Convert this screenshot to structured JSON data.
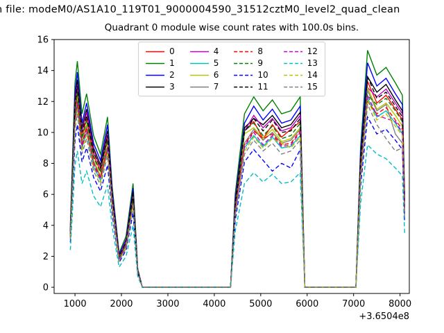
{
  "figure": {
    "title_line1": "n file: modeM0/AS1A10_119T01_9000004590_31512cztM0_level2_quad_clean",
    "title_line2": "Quadrant 0 module wise count rates with 100.0s bins.",
    "background": "#ffffff"
  },
  "chart_data": {
    "type": "line",
    "title": "Quadrant 0 module wise count rates with 100.0s bins.",
    "xlabel": "",
    "ylabel": "",
    "x_offset": "+3.6504e8",
    "xlim": [
      550,
      8200
    ],
    "ylim": [
      -0.4,
      16
    ],
    "x_ticks": [
      1000,
      2000,
      3000,
      4000,
      5000,
      6000,
      7000,
      8000
    ],
    "y_ticks": [
      0,
      2,
      4,
      6,
      8,
      10,
      12,
      14,
      16
    ],
    "grid": false,
    "legend": {
      "position": "upper center",
      "columns": 4
    },
    "x": [
      900,
      1000,
      1050,
      1150,
      1250,
      1400,
      1550,
      1700,
      1800,
      1950,
      2100,
      2250,
      2350,
      2450,
      4350,
      4450,
      4650,
      4850,
      5050,
      5250,
      5450,
      5650,
      5850,
      5950,
      7050,
      7150,
      7300,
      7500,
      7700,
      7900,
      8050,
      8100
    ],
    "series": [
      {
        "name": "0",
        "color": "#ff0000",
        "dash": false,
        "values": [
          3.5,
          11.5,
          12.7,
          9.7,
          10.9,
          8.5,
          7.5,
          9.6,
          5.7,
          1.9,
          2.9,
          5.8,
          1.0,
          0,
          0,
          5.2,
          10.1,
          10.7,
          9.6,
          10.5,
          9.7,
          10.2,
          10.7,
          0,
          0,
          7.8,
          13.3,
          11.9,
          12.4,
          11.5,
          10.8,
          5.1
        ]
      },
      {
        "name": "1",
        "color": "#008000",
        "dash": false,
        "values": [
          4.0,
          13.2,
          14.6,
          11.2,
          12.5,
          9.8,
          8.6,
          11.0,
          6.5,
          2.2,
          3.3,
          6.7,
          1.2,
          0,
          0,
          6.0,
          11.2,
          12.3,
          11.4,
          12.1,
          11.2,
          11.4,
          12.3,
          0,
          0,
          9.0,
          15.3,
          13.7,
          14.2,
          13.2,
          12.4,
          5.9
        ]
      },
      {
        "name": "2",
        "color": "#0000ff",
        "dash": false,
        "values": [
          3.8,
          12.5,
          13.9,
          10.6,
          11.9,
          9.3,
          8.2,
          10.5,
          6.2,
          2.1,
          3.1,
          6.4,
          1.1,
          0,
          0,
          5.7,
          10.6,
          11.7,
          10.8,
          11.5,
          10.6,
          10.8,
          11.7,
          0,
          0,
          8.6,
          14.5,
          13.0,
          13.5,
          12.5,
          11.8,
          5.6
        ]
      },
      {
        "name": "3",
        "color": "#000000",
        "dash": false,
        "values": [
          3.7,
          12.1,
          13.4,
          10.3,
          11.5,
          9.0,
          7.9,
          10.1,
          6.0,
          2.0,
          3.0,
          6.2,
          1.1,
          0,
          0,
          5.5,
          10.3,
          10.9,
          10.5,
          11.1,
          10.3,
          10.5,
          11.3,
          0,
          0,
          8.3,
          13.6,
          12.6,
          13.1,
          12.1,
          11.4,
          5.4
        ]
      },
      {
        "name": "4",
        "color": "#bf00bf",
        "dash": false,
        "values": [
          3.6,
          11.9,
          13.1,
          10.1,
          11.3,
          8.8,
          7.7,
          9.9,
          5.9,
          2.0,
          3.0,
          6.0,
          1.1,
          0,
          0,
          5.4,
          10.1,
          11.1,
          10.3,
          10.9,
          10.1,
          10.3,
          11.1,
          0,
          0,
          8.1,
          12.9,
          12.3,
          12.8,
          11.9,
          11.2,
          5.3
        ]
      },
      {
        "name": "5",
        "color": "#00bfbf",
        "dash": false,
        "values": [
          3.2,
          10.6,
          11.7,
          9.0,
          10.0,
          7.8,
          6.9,
          8.8,
          5.2,
          1.8,
          2.6,
          5.4,
          1.0,
          0,
          0,
          4.8,
          9.0,
          9.8,
          9.1,
          9.7,
          9.0,
          9.1,
          9.8,
          0,
          0,
          7.2,
          12.2,
          11.0,
          11.4,
          10.6,
          9.9,
          4.7
        ]
      },
      {
        "name": "6",
        "color": "#bfbf00",
        "dash": false,
        "values": [
          3.4,
          11.1,
          12.3,
          9.4,
          10.5,
          8.2,
          7.2,
          9.2,
          5.5,
          1.8,
          2.8,
          5.6,
          1.0,
          0,
          0,
          5.0,
          9.9,
          10.3,
          9.6,
          10.2,
          9.4,
          9.6,
          10.3,
          0,
          0,
          7.6,
          12.9,
          11.5,
          11.9,
          11.1,
          10.4,
          5.0
        ]
      },
      {
        "name": "7",
        "color": "#7f7f7f",
        "dash": false,
        "values": [
          3.3,
          11.0,
          12.1,
          9.3,
          10.4,
          8.1,
          7.1,
          9.1,
          5.4,
          1.8,
          2.7,
          5.6,
          1.0,
          0,
          0,
          5.0,
          9.3,
          10.2,
          9.5,
          10.0,
          9.3,
          9.5,
          10.2,
          0,
          0,
          7.5,
          12.7,
          11.4,
          11.8,
          9.9,
          9.3,
          4.9
        ]
      },
      {
        "name": "8",
        "color": "#ff0000",
        "dash": true,
        "values": [
          3.3,
          10.8,
          12.0,
          9.2,
          10.3,
          8.0,
          7.1,
          9.0,
          5.3,
          1.8,
          2.7,
          5.5,
          1.0,
          0,
          0,
          4.9,
          9.2,
          10.1,
          9.6,
          9.9,
          9.2,
          9.3,
          10.1,
          0,
          0,
          7.4,
          12.0,
          11.2,
          11.6,
          10.8,
          10.2,
          4.8
        ]
      },
      {
        "name": "9",
        "color": "#008000",
        "dash": true,
        "values": [
          3.4,
          11.4,
          12.6,
          9.6,
          10.8,
          8.4,
          7.4,
          9.5,
          5.6,
          1.9,
          2.8,
          5.8,
          1.0,
          0,
          0,
          5.2,
          10.1,
          10.6,
          9.8,
          10.4,
          9.6,
          9.8,
          10.6,
          0,
          0,
          7.7,
          12.4,
          11.8,
          12.2,
          11.4,
          10.7,
          5.1
        ]
      },
      {
        "name": "10",
        "color": "#0000ff",
        "dash": true,
        "values": [
          2.9,
          9.5,
          10.5,
          8.1,
          9.0,
          7.1,
          6.2,
          7.9,
          4.7,
          1.6,
          2.4,
          4.8,
          0.9,
          0,
          0,
          4.3,
          8.1,
          8.9,
          8.2,
          7.5,
          8.0,
          7.7,
          8.9,
          0,
          0,
          6.5,
          11.0,
          9.9,
          10.2,
          9.5,
          8.9,
          4.2
        ]
      },
      {
        "name": "11",
        "color": "#000000",
        "dash": true,
        "values": [
          3.6,
          11.7,
          13.0,
          10.0,
          11.1,
          8.7,
          7.7,
          9.8,
          5.8,
          2.0,
          2.9,
          6.0,
          1.1,
          0,
          0,
          5.3,
          10.0,
          10.9,
          10.1,
          10.8,
          10.0,
          10.1,
          10.9,
          0,
          0,
          8.0,
          13.6,
          12.2,
          12.6,
          11.7,
          11.0,
          5.3
        ]
      },
      {
        "name": "12",
        "color": "#bf00bf",
        "dash": true,
        "values": [
          3.2,
          10.7,
          11.8,
          9.1,
          10.1,
          7.9,
          7.0,
          8.9,
          5.3,
          1.8,
          2.7,
          5.4,
          1.0,
          0,
          0,
          4.9,
          9.1,
          10.0,
          9.2,
          9.8,
          9.1,
          9.2,
          10.0,
          0,
          0,
          7.3,
          12.4,
          11.1,
          10.9,
          10.7,
          10.0,
          4.8
        ]
      },
      {
        "name": "13",
        "color": "#00bfbf",
        "dash": true,
        "values": [
          2.4,
          7.9,
          8.8,
          6.7,
          7.5,
          5.9,
          5.2,
          6.6,
          3.9,
          1.3,
          2.0,
          4.0,
          0.7,
          0,
          0,
          3.6,
          6.7,
          7.4,
          6.8,
          7.3,
          6.7,
          6.8,
          7.4,
          0,
          0,
          5.4,
          9.2,
          8.6,
          8.3,
          7.7,
          7.2,
          3.5
        ]
      },
      {
        "name": "14",
        "color": "#bfbf00",
        "dash": true,
        "values": [
          3.2,
          10.4,
          11.5,
          8.8,
          9.9,
          7.7,
          6.8,
          8.7,
          5.1,
          1.7,
          2.6,
          5.3,
          0.9,
          0,
          0,
          4.7,
          8.8,
          9.7,
          9.0,
          9.6,
          9.3,
          9.0,
          9.7,
          0,
          0,
          7.1,
          12.1,
          10.8,
          11.2,
          10.4,
          9.8,
          4.7
        ]
      },
      {
        "name": "15",
        "color": "#7f7f7f",
        "dash": true,
        "values": [
          3.1,
          10.2,
          11.2,
          8.6,
          9.6,
          7.5,
          6.6,
          8.5,
          5.0,
          1.7,
          2.5,
          5.2,
          0.9,
          0,
          0,
          4.6,
          8.6,
          9.5,
          8.8,
          9.3,
          8.6,
          8.8,
          9.5,
          0,
          0,
          6.9,
          11.8,
          10.5,
          9.6,
          8.8,
          9.0,
          4.5
        ]
      }
    ]
  }
}
